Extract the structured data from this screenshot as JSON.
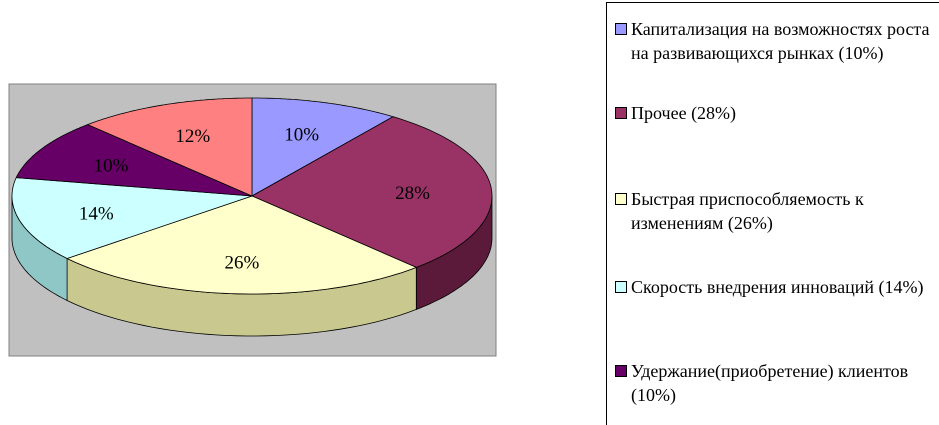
{
  "chart_data": {
    "type": "pie",
    "categories": [
      "Капитализация на возможностях роста на развивающихся рынках (10%)",
      "Прочее (28%)",
      "Быстрая приспособляемость к изменениям (26%)",
      "Скорость внедрения инноваций (14%)",
      "Удержание(приобретение) клиентов (10%)",
      ""
    ],
    "values": [
      10,
      28,
      26,
      14,
      10,
      12
    ],
    "data_labels": [
      "10%",
      "28%",
      "26%",
      "14%",
      "10%",
      "12%"
    ],
    "colors": [
      "#9999ff",
      "#993366",
      "#ffffcc",
      "#ccffff",
      "#660066",
      "#ff8080"
    ],
    "side_colors": [
      "#6a6ab3",
      "#5c1a3a",
      "#c9c98f",
      "#8fc7c7",
      "#3a003a",
      "#b35050"
    ],
    "legend_placement": "right",
    "plot_background": "#c0c0c0"
  },
  "legend": {
    "items": [
      {
        "label": "Капитализация на возможностях роста на развивающихся рынках (10%)"
      },
      {
        "label": "Прочее (28%)"
      },
      {
        "label": "Быстрая приспособляемость к изменениям (26%)"
      },
      {
        "label": "Скорость внедрения инноваций (14%)"
      },
      {
        "label": "Удержание(приобретение) клиентов (10%)"
      }
    ]
  }
}
